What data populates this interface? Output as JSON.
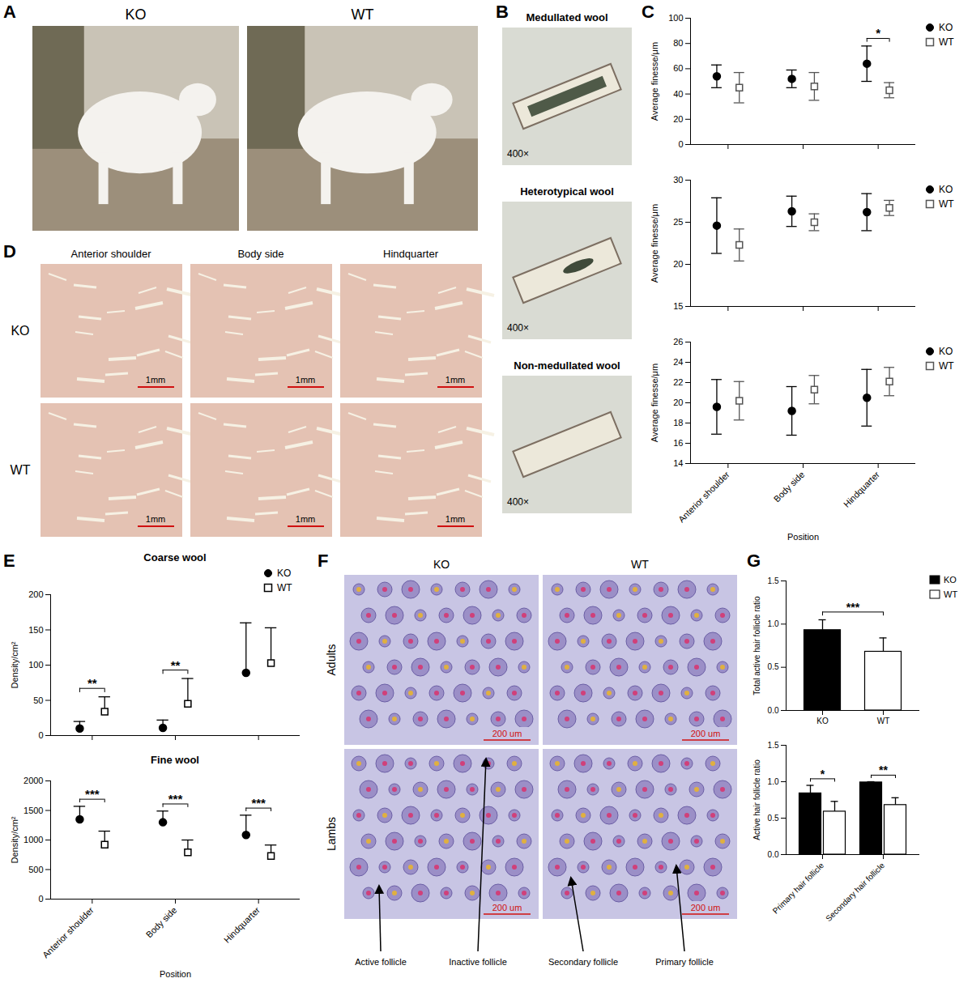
{
  "chart_data": [
    {
      "type": "scatter",
      "panel": "C",
      "ylabel": "Average finesse/μm",
      "categories": [
        "Anterior shoulder",
        "Body side",
        "Hindquarter"
      ],
      "series": [
        {
          "name": "KO",
          "color": "#000000",
          "marker": "circle",
          "values": [
            54,
            52,
            64
          ],
          "errors": [
            9,
            7,
            14
          ]
        },
        {
          "name": "WT",
          "color": "#555555",
          "marker": "open_square",
          "values": [
            45,
            46,
            43
          ],
          "errors": [
            12,
            11,
            6
          ]
        }
      ],
      "ylim": [
        0,
        100
      ],
      "yticks": [
        0,
        20,
        40,
        60,
        80,
        100
      ],
      "tick_labels": "y",
      "legend": "right",
      "annotations": [
        {
          "category": "Hindquarter",
          "text": "*"
        }
      ]
    },
    {
      "type": "scatter",
      "ylabel": "Average finesse/μm",
      "categories": [
        "Anterior shoulder",
        "Body side",
        "Hindquarter"
      ],
      "series": [
        {
          "name": "KO",
          "color": "#000000",
          "marker": "circle",
          "values": [
            24.6,
            26.3,
            26.2
          ],
          "errors": [
            3.3,
            1.8,
            2.2
          ]
        },
        {
          "name": "WT",
          "color": "#555555",
          "marker": "open_square",
          "values": [
            22.3,
            25.0,
            26.7
          ],
          "errors": [
            1.9,
            1.0,
            0.9
          ]
        }
      ],
      "ylim": [
        15,
        30
      ],
      "yticks": [
        15,
        20,
        25,
        30
      ],
      "tick_labels": "y",
      "legend": "right"
    },
    {
      "type": "scatter",
      "ylabel": "Average finesse/μm",
      "xlabel": "Position",
      "categories": [
        "Anterior shoulder",
        "Body side",
        "Hindquarter"
      ],
      "series": [
        {
          "name": "KO",
          "color": "#000000",
          "marker": "circle",
          "values": [
            19.6,
            19.2,
            20.5
          ],
          "errors": [
            2.7,
            2.4,
            2.8
          ]
        },
        {
          "name": "WT",
          "color": "#555555",
          "marker": "open_square",
          "values": [
            20.2,
            21.3,
            22.1
          ],
          "errors": [
            1.9,
            1.4,
            1.4
          ]
        }
      ],
      "ylim": [
        14,
        26
      ],
      "yticks": [
        14,
        16,
        18,
        20,
        22,
        24,
        26
      ],
      "legend": "right"
    },
    {
      "type": "scatter",
      "panel": "E",
      "title": "Coarse wool",
      "ylabel": "Density/cm²",
      "categories": [
        "Anterior shoulder",
        "Body side",
        "Hindquarter"
      ],
      "series": [
        {
          "name": "KO",
          "color": "#000000",
          "marker": "circle",
          "values": [
            10,
            11,
            89
          ],
          "errors_upper": [
            10,
            11,
            71
          ]
        },
        {
          "name": "WT",
          "color": "#000000",
          "marker": "open_square",
          "values": [
            34,
            45,
            103
          ],
          "errors_upper": [
            21,
            36,
            50
          ]
        }
      ],
      "ylim": [
        0,
        200
      ],
      "yticks": [
        0,
        50,
        100,
        150,
        200
      ],
      "tick_labels": "y",
      "legend": "top-right",
      "annotations": [
        {
          "category": "Anterior shoulder",
          "text": "**"
        },
        {
          "category": "Body side",
          "text": "**"
        }
      ]
    },
    {
      "type": "scatter",
      "title": "Fine wool",
      "ylabel": "Density/cm²",
      "xlabel": "Position",
      "categories": [
        "Anterior shoulder",
        "Body side",
        "Hindquarter"
      ],
      "series": [
        {
          "name": "KO",
          "color": "#000000",
          "marker": "circle",
          "values": [
            1350,
            1300,
            1085
          ],
          "errors_upper": [
            220,
            190,
            335
          ]
        },
        {
          "name": "WT",
          "color": "#000000",
          "marker": "open_square",
          "values": [
            920,
            790,
            730
          ],
          "errors_upper": [
            230,
            210,
            185
          ]
        }
      ],
      "ylim": [
        0,
        2000
      ],
      "yticks": [
        0,
        500,
        1000,
        1500,
        2000
      ],
      "annotations": [
        {
          "category": "Anterior shoulder",
          "text": "***"
        },
        {
          "category": "Body side",
          "text": "***"
        },
        {
          "category": "Hindquarter",
          "text": "***"
        }
      ]
    },
    {
      "type": "bar",
      "panel": "G",
      "ylabel": "Total active hair follicle ratio",
      "categories": [
        "KO",
        "WT"
      ],
      "values": [
        0.93,
        0.68
      ],
      "errors_upper": [
        0.12,
        0.16
      ],
      "colors": [
        "#000000",
        "#ffffff"
      ],
      "ylim": [
        0,
        1.5
      ],
      "yticks": [
        {
          "value": 0,
          "label": "0.0"
        },
        {
          "value": 0.5,
          "label": "0.5"
        },
        {
          "value": 1,
          "label": "1.0"
        },
        {
          "value": 1.5,
          "label": "1.5"
        }
      ],
      "legend": "right",
      "annotations": [
        {
          "categories": [
            "KO",
            "WT"
          ],
          "text": "***"
        }
      ]
    },
    {
      "type": "bar",
      "ylabel": "Active hair follicle ratio",
      "categories": [
        "Primary hair follicle",
        "Secondary hair follicle"
      ],
      "series": [
        {
          "name": "KO",
          "color": "#000000",
          "values": [
            0.84,
            0.99
          ],
          "errors_upper": [
            0.11,
            0.01
          ]
        },
        {
          "name": "WT",
          "color": "#ffffff",
          "values": [
            0.59,
            0.68
          ],
          "errors_upper": [
            0.14,
            0.1
          ]
        }
      ],
      "ylim": [
        0,
        1.5
      ],
      "yticks": [
        {
          "value": 0,
          "label": "0.0"
        },
        {
          "value": 0.5,
          "label": "0.5"
        },
        {
          "value": 1,
          "label": "1.0"
        },
        {
          "value": 1.5,
          "label": "1.5"
        }
      ],
      "annotations": [
        {
          "category": "Primary hair follicle",
          "text": "*"
        },
        {
          "category": "Secondary hair follicle",
          "text": "**"
        }
      ]
    }
  ],
  "photo_panels": {
    "A": {
      "panel": "A",
      "labels": [
        "KO",
        "WT"
      ]
    },
    "B": {
      "panel": "B",
      "images": [
        {
          "title": "Medullated wool",
          "magnification": "400×"
        },
        {
          "title": "Heterotypical wool",
          "magnification": "400×"
        },
        {
          "title": "Non-medullated wool",
          "magnification": "400×"
        }
      ]
    },
    "D": {
      "panel": "D",
      "columns": [
        "Anterior shoulder",
        "Body side",
        "Hindquarter"
      ],
      "rows": [
        "KO",
        "WT"
      ],
      "scale_bar": "1mm"
    },
    "F": {
      "panel": "F",
      "columns": [
        "KO",
        "WT"
      ],
      "rows": [
        "Adults",
        "Lambs"
      ],
      "scale_bar": "200 um",
      "callouts": [
        "Active follicle",
        "Inactive follicle",
        "Secondary follicle",
        "Primary follicle"
      ]
    }
  }
}
